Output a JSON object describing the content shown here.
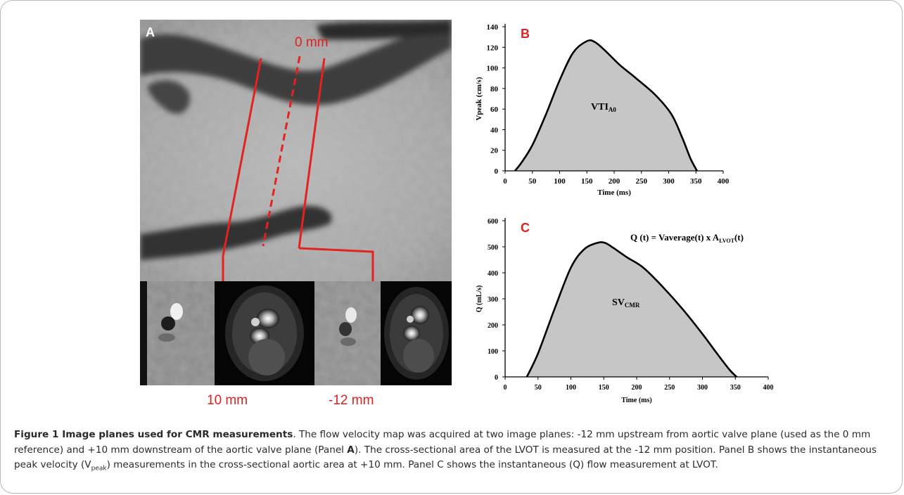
{
  "figure": {
    "panel_a": {
      "label": "A",
      "plane_label_top": "0 mm",
      "plane_label_left": "10 mm",
      "plane_label_right": "-12 mm"
    },
    "caption": {
      "title": "Figure 1 Image planes used for CMR measurements",
      "text_1": ". The flow velocity map was acquired at two image planes: -12 mm upstream from aortic valve plane (used as the 0 mm reference) and +10 mm downstream of the aortic valve plane (Panel ",
      "panel_ref": "A",
      "text_2": "). The cross-sectional area of the LVOT is measured at the -12 mm position. Panel B shows the instantaneous peak velocity (V",
      "sub_peak": "peak",
      "text_3": ") measurements in the cross-sectional aortic area at +10 mm. Panel C shows the instantaneous (Q) flow measurement at LVOT."
    }
  },
  "chart_data": [
    {
      "type": "area",
      "panel_label": "B",
      "xlabel": "Time (ms)",
      "ylabel": "Vpeak (cm/s)",
      "xlim": [
        0,
        400
      ],
      "ylim": [
        0,
        140
      ],
      "xticks": [
        0,
        50,
        100,
        150,
        200,
        250,
        300,
        350,
        400
      ],
      "yticks": [
        0,
        20,
        40,
        60,
        80,
        100,
        120,
        140
      ],
      "area_label": "VTI",
      "area_label_sub": "A0",
      "fill_color": "#c6c6c6",
      "x": [
        18,
        30,
        50,
        75,
        100,
        125,
        150,
        165,
        185,
        210,
        240,
        275,
        305,
        325,
        340,
        352
      ],
      "y": [
        0,
        8,
        25,
        55,
        88,
        115,
        126,
        125,
        116,
        103,
        90,
        74,
        55,
        32,
        12,
        0
      ]
    },
    {
      "type": "area",
      "panel_label": "C",
      "xlabel": "Time (ms)",
      "ylabel": "Q (mL/s)",
      "xlim": [
        0,
        400
      ],
      "ylim": [
        0,
        600
      ],
      "xticks": [
        0,
        50,
        100,
        150,
        200,
        250,
        300,
        350,
        400
      ],
      "yticks": [
        0,
        100,
        200,
        300,
        400,
        500,
        600
      ],
      "equation": "Q (t) = Vaverage(t) x A",
      "equation_sub": "LVOT",
      "equation_tail": "(t)",
      "area_label": "SV",
      "area_label_sub": "CMR",
      "fill_color": "#c6c6c6",
      "x": [
        33,
        50,
        75,
        100,
        120,
        140,
        152,
        165,
        185,
        210,
        240,
        270,
        300,
        325,
        342,
        352
      ],
      "y": [
        0,
        90,
        260,
        420,
        490,
        515,
        515,
        495,
        460,
        420,
        345,
        260,
        165,
        80,
        25,
        0
      ]
    }
  ]
}
